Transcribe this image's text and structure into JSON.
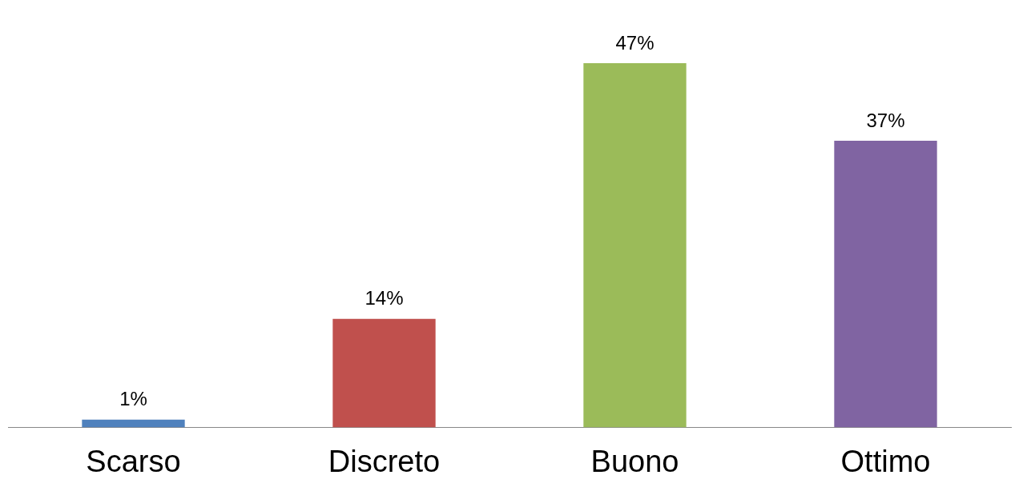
{
  "chart_data": {
    "type": "bar",
    "categories": [
      "Scarso",
      "Discreto",
      "Buono",
      "Ottimo"
    ],
    "values": [
      1,
      14,
      47,
      37
    ],
    "colors": [
      "#4f81bd",
      "#c0504d",
      "#9bbb59",
      "#8064a2"
    ],
    "value_labels": [
      "1%",
      "14%",
      "47%",
      "37%"
    ],
    "grid": false,
    "legend": false
  }
}
